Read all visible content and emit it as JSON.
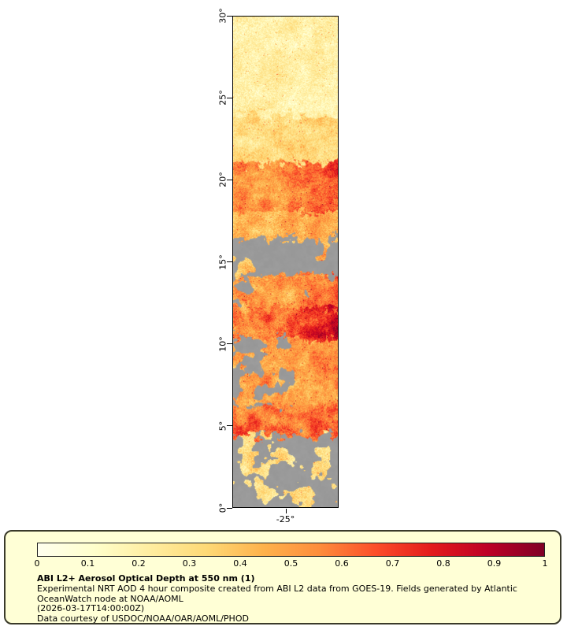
{
  "map": {
    "y_axis_labels": [
      "30°",
      "25°",
      "20°",
      "15°",
      "10°",
      "5°",
      "0°"
    ],
    "x_axis_label": "-25°",
    "nodata_color": "#9a9a9a"
  },
  "legend": {
    "background": "#ffffd6",
    "ticks": [
      "0",
      "0.1",
      "0.2",
      "0.3",
      "0.4",
      "0.5",
      "0.6",
      "0.7",
      "0.8",
      "0.9",
      "1"
    ],
    "title": "ABI L2+ Aerosol Optical Depth at 550 nm (1)",
    "description": "Experimental NRT AOD 4 hour composite created from ABI L2 data from GOES-19. Fields generated by Atlantic OceanWatch node at NOAA/AOML",
    "timestamp": "(2026-03-17T14:00:00Z)",
    "courtesy": "Data courtesy of USDOC/NOAA/OAR/AOML/PHOD"
  },
  "chart_data": {
    "type": "heatmap",
    "variable": "Aerosol Optical Depth at 550 nm",
    "title": "ABI L2+ Aerosol Optical Depth at 550 nm (1)",
    "source": "GOES-19 ABI L2, 4 hour NRT composite",
    "valid_time": "2026-03-17T14:00:00Z",
    "lat_range": [
      0,
      30
    ],
    "lat_ticks": [
      0,
      5,
      10,
      15,
      20,
      25,
      30
    ],
    "lon_ticks": [
      -25
    ],
    "colorbar": {
      "min": 0,
      "max": 1,
      "ticks": [
        0,
        0.1,
        0.2,
        0.3,
        0.4,
        0.5,
        0.6,
        0.7,
        0.8,
        0.9,
        1
      ],
      "palette": "YlOrRd",
      "stops": [
        "#ffffee",
        "#ffffcc",
        "#ffeda0",
        "#fed976",
        "#feb24c",
        "#fd8d3c",
        "#fc4e2a",
        "#e31a1c",
        "#bd0026",
        "#800026"
      ],
      "nodata_color": "#9a9a9a"
    },
    "lat_bands": [
      {
        "lat_min": 24.0,
        "lat_max": 30.0,
        "aod_mean": 0.2,
        "aod_noise": 0.1,
        "gray_fraction": 0.0,
        "right_boost": 0.0
      },
      {
        "lat_min": 21.0,
        "lat_max": 24.0,
        "aod_mean": 0.3,
        "aod_noise": 0.13,
        "gray_fraction": 0.0,
        "right_boost": 0.05
      },
      {
        "lat_min": 18.0,
        "lat_max": 21.0,
        "aod_mean": 0.52,
        "aod_noise": 0.18,
        "gray_fraction": 0.0,
        "right_boost": 0.3
      },
      {
        "lat_min": 16.5,
        "lat_max": 18.0,
        "aod_mean": 0.42,
        "aod_noise": 0.15,
        "gray_fraction": 0.06,
        "right_boost": 0.1
      },
      {
        "lat_min": 14.2,
        "lat_max": 16.5,
        "aod_mean": 0.38,
        "aod_noise": 0.15,
        "gray_fraction": 0.78,
        "right_boost": 0.1
      },
      {
        "lat_min": 12.3,
        "lat_max": 14.2,
        "aod_mean": 0.5,
        "aod_noise": 0.2,
        "gray_fraction": 0.3,
        "gray_side": "left",
        "right_boost": 0.15
      },
      {
        "lat_min": 10.4,
        "lat_max": 12.3,
        "aod_mean": 0.6,
        "aod_noise": 0.22,
        "gray_fraction": 0.08,
        "right_boost": 0.32
      },
      {
        "lat_min": 8.4,
        "lat_max": 10.4,
        "aod_mean": 0.48,
        "aod_noise": 0.2,
        "gray_fraction": 0.42,
        "gray_side": "left",
        "right_boost": 0.18
      },
      {
        "lat_min": 6.2,
        "lat_max": 8.4,
        "aod_mean": 0.52,
        "aod_noise": 0.2,
        "gray_fraction": 0.5,
        "gray_side": "left",
        "right_boost": 0.05
      },
      {
        "lat_min": 4.4,
        "lat_max": 6.2,
        "aod_mean": 0.62,
        "aod_noise": 0.24,
        "gray_fraction": 0.15,
        "right_boost": 0.0
      },
      {
        "lat_min": 0.0,
        "lat_max": 4.4,
        "aod_mean": 0.3,
        "aod_noise": 0.15,
        "gray_fraction": 0.7,
        "right_boost": 0.0
      }
    ]
  }
}
